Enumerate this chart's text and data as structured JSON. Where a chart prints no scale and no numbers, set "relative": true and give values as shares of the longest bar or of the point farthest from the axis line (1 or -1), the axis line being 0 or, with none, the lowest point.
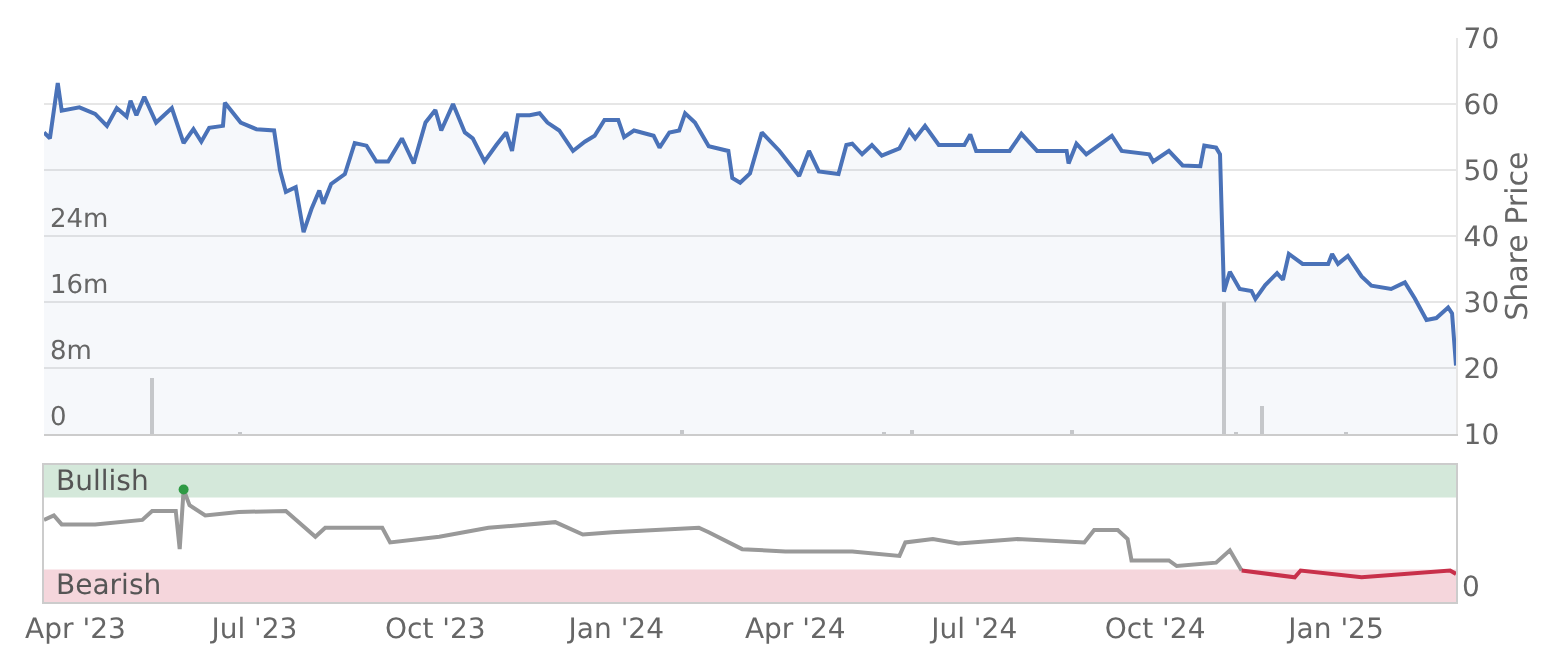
{
  "chart_data": [
    {
      "type": "line",
      "y2label": "Share Price",
      "xlim": [
        "2023-03-16",
        "2025-03-03"
      ],
      "ylim": [
        0,
        48000000
      ],
      "yticks": [
        {
          "value": 0,
          "label": "0"
        },
        {
          "value": 8000000,
          "label": "8m"
        },
        {
          "value": 16000000,
          "label": "16m"
        },
        {
          "value": 24000000,
          "label": "24m"
        }
      ],
      "y2lim": [
        10,
        70
      ],
      "y2ticks": [
        10,
        20,
        30,
        40,
        50,
        60,
        70
      ],
      "grid": "y",
      "tick_labels": "y",
      "series": [
        {
          "type": "bar",
          "color": "#cccccc",
          "x": [
            "2023-05-10",
            "2023-06-24",
            "2024-02-03",
            "2024-05-16",
            "2024-05-30",
            "2024-08-20",
            "2024-11-05",
            "2024-11-11",
            "2024-11-24",
            "2025-01-06"
          ],
          "values": [
            6900000,
            200000,
            600000,
            300000,
            500000,
            600000,
            16000000,
            300000,
            3400000,
            200000
          ]
        },
        {
          "type": "area",
          "axis": "y2",
          "color": "#4a72b8",
          "x": [
            "2023-03-16",
            "2023-03-19",
            "2023-03-23",
            "2023-03-25",
            "2023-04-03",
            "2023-04-11",
            "2023-04-17",
            "2023-04-22",
            "2023-04-27",
            "2023-04-29",
            "2023-05-02",
            "2023-05-06",
            "2023-05-12",
            "2023-05-20",
            "2023-05-26",
            "2023-05-31",
            "2023-06-04",
            "2023-06-08",
            "2023-06-15",
            "2023-06-16",
            "2023-06-24",
            "2023-07-02",
            "2023-07-11",
            "2023-07-14",
            "2023-07-17",
            "2023-07-22",
            "2023-07-26",
            "2023-07-30",
            "2023-08-03",
            "2023-08-05",
            "2023-08-09",
            "2023-08-16",
            "2023-08-21",
            "2023-08-27",
            "2023-09-01",
            "2023-09-07",
            "2023-09-14",
            "2023-09-20",
            "2023-09-26",
            "2023-10-01",
            "2023-10-04",
            "2023-10-10",
            "2023-10-16",
            "2023-10-20",
            "2023-10-26",
            "2023-11-01",
            "2023-11-06",
            "2023-11-09",
            "2023-11-12",
            "2023-11-18",
            "2023-11-23",
            "2023-11-27",
            "2023-12-03",
            "2023-12-10",
            "2023-12-16",
            "2023-12-21",
            "2023-12-26",
            "2024-01-02",
            "2024-01-05",
            "2024-01-10",
            "2024-01-20",
            "2024-01-23",
            "2024-01-28",
            "2024-02-02",
            "2024-02-05",
            "2024-02-10",
            "2024-02-17",
            "2024-02-27",
            "2024-02-29",
            "2024-03-04",
            "2024-03-09",
            "2024-03-15",
            "2024-03-24",
            "2024-04-03",
            "2024-04-08",
            "2024-04-13",
            "2024-04-23",
            "2024-04-27",
            "2024-04-30",
            "2024-05-05",
            "2024-05-10",
            "2024-05-15",
            "2024-05-24",
            "2024-05-29",
            "2024-06-01",
            "2024-06-06",
            "2024-06-13",
            "2024-06-26",
            "2024-06-29",
            "2024-07-02",
            "2024-07-19",
            "2024-07-25",
            "2024-08-02",
            "2024-08-17",
            "2024-08-18",
            "2024-08-22",
            "2024-08-27",
            "2024-09-09",
            "2024-09-14",
            "2024-09-28",
            "2024-09-30",
            "2024-10-08",
            "2024-10-15",
            "2024-10-24",
            "2024-10-26",
            "2024-11-01",
            "2024-11-03",
            "2024-11-05",
            "2024-11-08",
            "2024-11-13",
            "2024-11-19",
            "2024-11-21",
            "2024-11-26",
            "2024-12-02",
            "2024-12-05",
            "2024-12-08",
            "2024-12-15",
            "2024-12-28",
            "2024-12-30",
            "2025-01-02",
            "2025-01-07",
            "2025-01-14",
            "2025-01-19",
            "2025-01-29",
            "2025-02-05",
            "2025-02-10",
            "2025-02-16",
            "2025-02-21",
            "2025-02-27",
            "2025-03-01",
            "2025-03-03"
          ],
          "values": [
            55.7,
            54.8,
            63.2,
            59.0,
            59.5,
            58.5,
            56.7,
            59.4,
            58.1,
            60.5,
            58.3,
            61.1,
            57.2,
            59.4,
            54.1,
            56.2,
            54.3,
            56.4,
            56.7,
            60.2,
            57.2,
            56.2,
            56.0,
            50.0,
            46.7,
            47.4,
            40.6,
            44.1,
            46.9,
            44.9,
            47.9,
            49.4,
            54.1,
            53.7,
            51.3,
            51.3,
            54.8,
            51.0,
            57.2,
            59.1,
            56.0,
            60.0,
            55.7,
            54.8,
            51.3,
            53.8,
            55.7,
            52.9,
            58.3,
            58.3,
            58.6,
            57.2,
            56.0,
            52.9,
            54.3,
            55.2,
            57.6,
            57.6,
            55.0,
            56.0,
            55.2,
            53.4,
            55.7,
            56.0,
            58.6,
            57.2,
            53.6,
            52.9,
            48.8,
            48.1,
            49.5,
            55.7,
            52.9,
            49.1,
            52.9,
            49.8,
            49.4,
            53.8,
            54.0,
            52.4,
            53.8,
            52.2,
            53.3,
            56.0,
            54.8,
            56.7,
            53.8,
            53.8,
            55.4,
            52.9,
            52.9,
            55.5,
            52.9,
            52.9,
            51.0,
            54.0,
            52.4,
            55.2,
            52.9,
            52.4,
            51.3,
            52.9,
            50.7,
            50.6,
            53.7,
            53.4,
            52.4,
            31.6,
            34.6,
            32.0,
            31.7,
            30.5,
            32.6,
            34.4,
            33.4,
            37.3,
            35.8,
            35.8,
            37.3,
            35.8,
            37.0,
            33.9,
            32.5,
            32.0,
            33.0,
            30.6,
            27.3,
            27.6,
            29.2,
            28.3,
            20.4
          ]
        }
      ]
    },
    {
      "type": "line",
      "relative": true,
      "xlim": [
        "2023-03-16",
        "2025-03-03"
      ],
      "xticks": [
        {
          "value": "2023-04-01",
          "label": "Apr '23"
        },
        {
          "value": "2023-07-01",
          "label": "Jul '23"
        },
        {
          "value": "2023-10-01",
          "label": "Oct '23"
        },
        {
          "value": "2024-01-01",
          "label": "Jan '24"
        },
        {
          "value": "2024-04-01",
          "label": "Apr '24"
        },
        {
          "value": "2024-07-01",
          "label": "Jul '24"
        },
        {
          "value": "2024-10-01",
          "label": "Oct '24"
        },
        {
          "value": "2025-01-01",
          "label": "Jan '25"
        }
      ],
      "tick_labels": "x",
      "bands": [
        {
          "axis": "y",
          "from": 0.93,
          "to": 1.22,
          "label": "Bullish",
          "color": "#d4e8da"
        },
        {
          "axis": "y",
          "from": 0,
          "to": 0.29,
          "label": "Bearish",
          "color": "#f5d6dc"
        }
      ],
      "annotations": [
        "0"
      ],
      "series": [
        {
          "color": "#999999",
          "x": [
            "2023-03-16",
            "2023-03-21",
            "2023-03-25",
            "2023-04-11",
            "2023-05-05",
            "2023-05-10",
            "2023-05-22",
            "2023-05-24",
            "2023-05-26",
            "2023-05-29",
            "2023-06-06",
            "2023-06-23",
            "2023-07-17",
            "2023-08-01",
            "2023-08-06",
            "2023-09-04",
            "2023-09-08",
            "2023-10-03",
            "2023-10-28",
            "2023-12-01",
            "2023-12-15",
            "2023-12-30",
            "2024-02-12",
            "2024-02-17",
            "2024-03-05",
            "2024-03-27",
            "2024-04-30",
            "2024-05-24",
            "2024-05-27",
            "2024-06-10",
            "2024-06-23",
            "2024-07-23",
            "2024-08-26",
            "2024-08-31",
            "2024-09-12",
            "2024-09-17",
            "2024-09-19",
            "2024-10-08",
            "2024-10-12",
            "2024-11-01",
            "2024-11-08",
            "2024-11-14"
          ],
          "values": [
            0.73,
            0.77,
            0.69,
            0.69,
            0.73,
            0.81,
            0.81,
            0.47,
            1.0,
            0.86,
            0.77,
            0.8,
            0.81,
            0.58,
            0.66,
            0.66,
            0.53,
            0.58,
            0.66,
            0.71,
            0.6,
            0.62,
            0.66,
            0.62,
            0.47,
            0.45,
            0.45,
            0.41,
            0.53,
            0.56,
            0.52,
            0.56,
            0.53,
            0.64,
            0.64,
            0.56,
            0.37,
            0.37,
            0.32,
            0.35,
            0.46,
            0.28
          ]
        },
        {
          "color": "#c8304a",
          "x": [
            "2024-11-14",
            "2024-12-11",
            "2024-12-14",
            "2025-01-14",
            "2025-02-28",
            "2025-03-03"
          ],
          "values": [
            0.28,
            0.22,
            0.28,
            0.22,
            0.28,
            0.25
          ]
        },
        {
          "type": "scatter",
          "color": "#2e9a44",
          "x": [
            "2023-05-26"
          ],
          "values": [
            1.0
          ]
        }
      ]
    }
  ]
}
